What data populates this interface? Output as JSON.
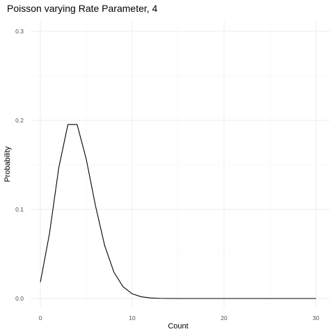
{
  "chart_data": {
    "type": "line",
    "title": "Poisson varying Rate Parameter, 4",
    "xlabel": "Count",
    "ylabel": "Probability",
    "xlim": [
      0,
      30
    ],
    "ylim": [
      0,
      0.3
    ],
    "x_ticks": [
      0,
      10,
      20,
      30
    ],
    "y_ticks": [
      0.0,
      0.1,
      0.2,
      0.3
    ],
    "x_tick_labels": [
      "0",
      "10",
      "20",
      "30"
    ],
    "y_tick_labels": [
      "0.0",
      "0.1",
      "0.2",
      "0.3"
    ],
    "grid": true,
    "legend": "none",
    "line_color": "#000000",
    "x": [
      0,
      1,
      2,
      3,
      4,
      5,
      6,
      7,
      8,
      9,
      10,
      11,
      12,
      13,
      14,
      15,
      16,
      17,
      18,
      19,
      20,
      21,
      22,
      23,
      24,
      25,
      26,
      27,
      28,
      29,
      30
    ],
    "y": [
      0.0183,
      0.0733,
      0.1465,
      0.1954,
      0.1954,
      0.1563,
      0.1042,
      0.0595,
      0.0298,
      0.0132,
      0.0053,
      0.0019,
      0.0006,
      0.0002,
      0.0001,
      0.0,
      0.0,
      0.0,
      0.0,
      0.0,
      0.0,
      0.0,
      0.0,
      0.0,
      0.0,
      0.0,
      0.0,
      0.0,
      0.0,
      0.0,
      0.0
    ]
  }
}
